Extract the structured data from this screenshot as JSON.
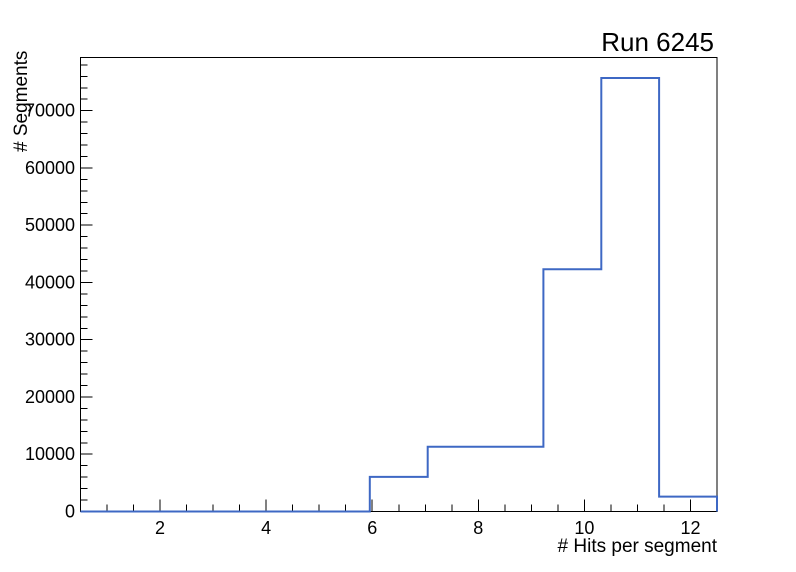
{
  "chart_data": {
    "type": "line",
    "style": "histogram-step",
    "title": "Run 6245",
    "xlabel": "# Hits per segment",
    "ylabel": "# Segments",
    "xlim": [
      0.5,
      12.5
    ],
    "ylim": [
      0,
      79200
    ],
    "bin_edges": [
      0.5,
      1.5909,
      2.6818,
      3.7727,
      4.8636,
      5.9545,
      7.0455,
      8.1364,
      9.2273,
      10.3182,
      11.4091,
      12.5
    ],
    "counts": [
      0,
      0,
      0,
      0,
      0,
      6050,
      11300,
      11300,
      42300,
      75700,
      2600
    ],
    "x_major_ticks": [
      2,
      4,
      6,
      8,
      10,
      12
    ],
    "x_major_tick_labels": [
      "2",
      "4",
      "6",
      "8",
      "10",
      "12"
    ],
    "x_minor_tick_step": 0.5,
    "y_major_tick_step": 10000,
    "y_major_tick_labels": [
      "0",
      "10000",
      "20000",
      "30000",
      "40000",
      "50000",
      "60000",
      "70000"
    ],
    "y_minor_tick_step": 2000,
    "grid": false,
    "legend": false,
    "line_color": "#3e68c4",
    "axis_color": "#000000",
    "background_color": "#ffffff"
  }
}
